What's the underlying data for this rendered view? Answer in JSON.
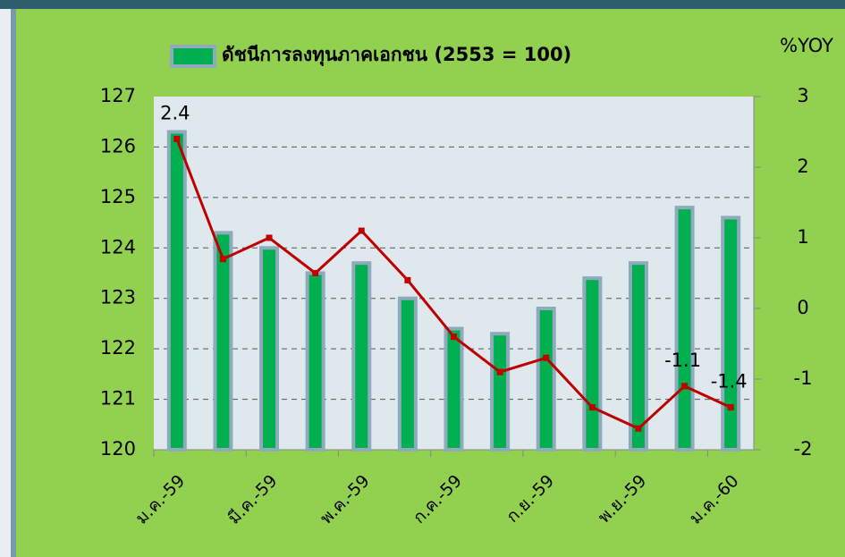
{
  "chart_data": {
    "type": "bar_line",
    "legend_position": "top",
    "y2_label": "%YOY",
    "categories": [
      "ม.ค.-59",
      null,
      "มี.ค.-59",
      null,
      "พ.ค.-59",
      null,
      "ก.ค.-59",
      null,
      "ก.ย.-59",
      null,
      "พ.ย.-59",
      null,
      "ม.ค.-60"
    ],
    "series": [
      {
        "name": "ดัชนีการลงทุนภาคเอกชน (2553 = 100)",
        "type": "bar",
        "color": "#00b050",
        "edge_color": "#8eaabc",
        "values": [
          126.3,
          124.3,
          124.0,
          123.5,
          123.7,
          123.0,
          122.4,
          122.3,
          122.8,
          123.4,
          123.7,
          124.8,
          124.6
        ]
      },
      {
        "type": "line",
        "axis": "y2",
        "color": "#c00000",
        "values": [
          2.4,
          0.7,
          1.0,
          0.5,
          1.1,
          0.4,
          -0.4,
          -0.9,
          -0.7,
          -1.4,
          -1.7,
          -1.1,
          -1.4
        ],
        "value_labels": [
          "2.4",
          null,
          null,
          null,
          null,
          null,
          null,
          null,
          null,
          null,
          null,
          "-1.1",
          "-1.4"
        ]
      }
    ],
    "ylim": [
      120,
      127
    ],
    "yticks": [
      120,
      121,
      122,
      123,
      124,
      125,
      126,
      127
    ],
    "y2lim": [
      -2,
      3
    ],
    "y2ticks": [
      -2,
      -1,
      0,
      1,
      2,
      3
    ],
    "grid": true
  }
}
